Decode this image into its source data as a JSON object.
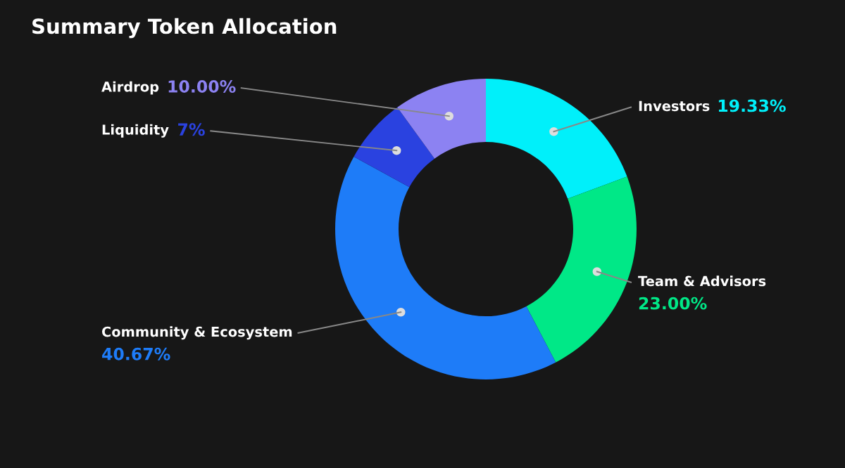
{
  "chart_data": {
    "type": "donut",
    "title": "Summary Token Allocation",
    "categories": [
      "Investors",
      "Team & Advisors",
      "Community & Ecosystem",
      "Liquidity",
      "Airdrop"
    ],
    "values": [
      19.33,
      23.0,
      40.67,
      7,
      10.0
    ],
    "value_labels": [
      "19.33%",
      "23.00%",
      "40.67%",
      "7%",
      "10.00%"
    ],
    "colors": [
      "#00f0fa",
      "#00e887",
      "#1e7cf8",
      "#2a42e0",
      "#8c82f2"
    ],
    "legend": false
  }
}
